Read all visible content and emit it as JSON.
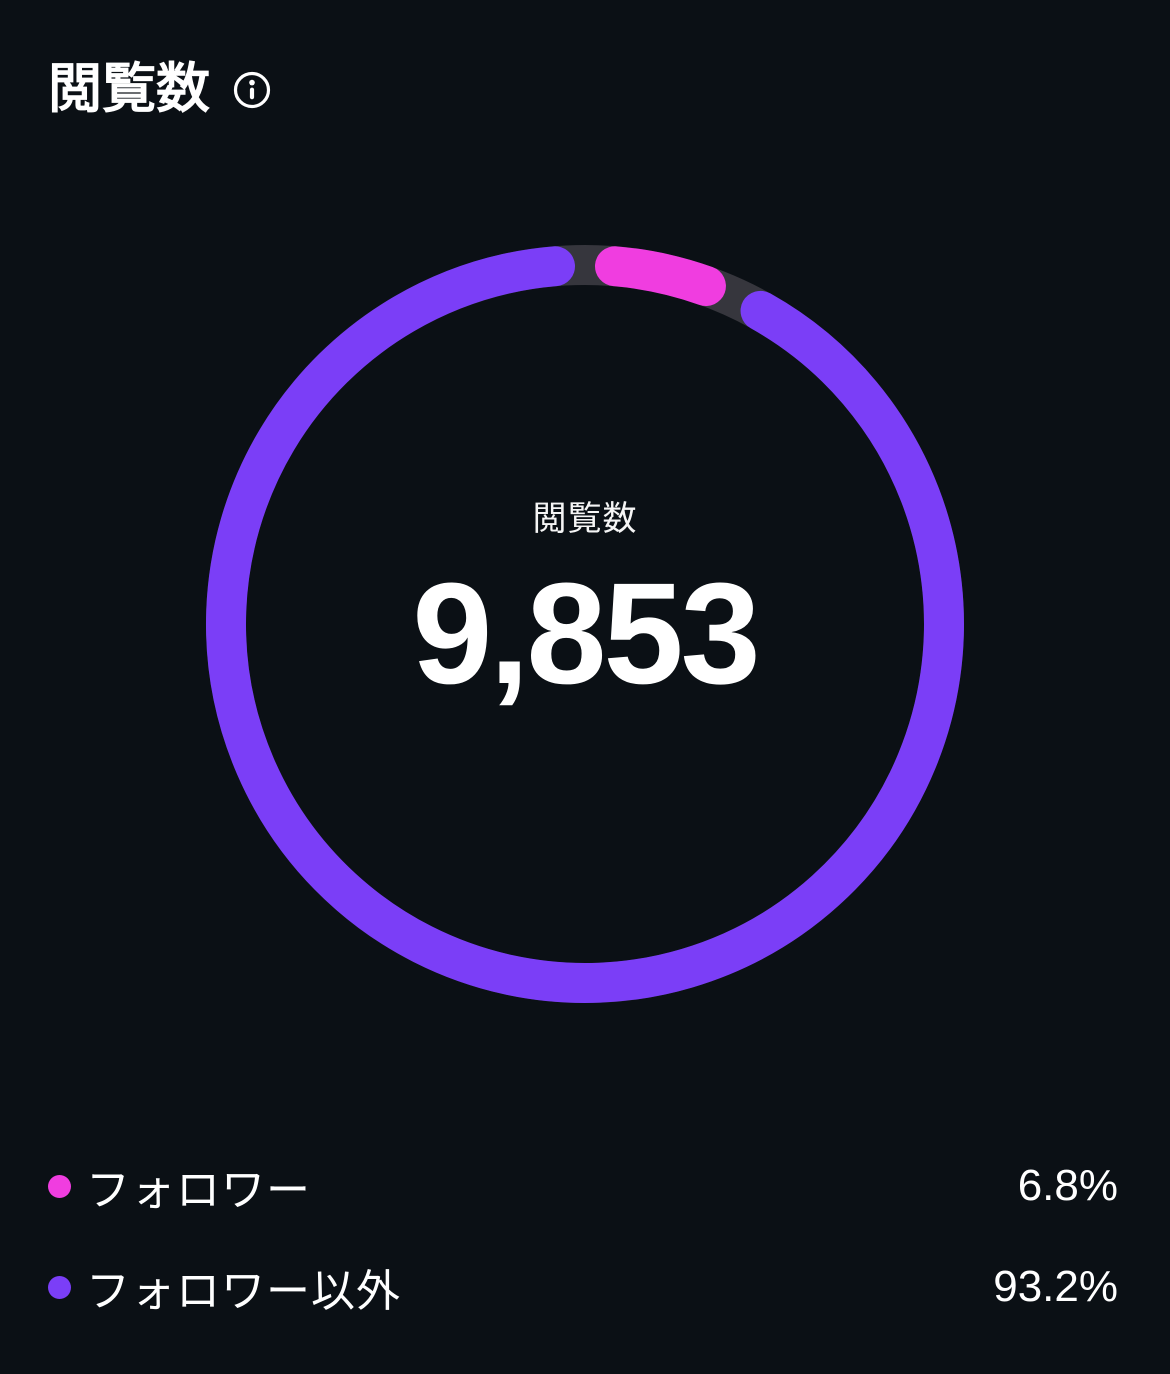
{
  "header": {
    "title": "閲覧数"
  },
  "colors": {
    "background": "#0b1015",
    "track": "#36363d",
    "follower": "#f03de0",
    "non_follower": "#7b3ef7",
    "text": "#ffffff"
  },
  "chart_data": {
    "type": "pie",
    "donut": true,
    "title": "閲覧数",
    "center_label": "閲覧数",
    "center_value": "9,853",
    "total_value": 9853,
    "start_angle_deg": -90,
    "legend_position": "bottom",
    "series": [
      {
        "name": "フォロワー",
        "value": 6.8,
        "display": "6.8%",
        "color": "#f03de0"
      },
      {
        "name": "フォロワー以外",
        "value": 93.2,
        "display": "93.2%",
        "color": "#7b3ef7"
      }
    ]
  }
}
